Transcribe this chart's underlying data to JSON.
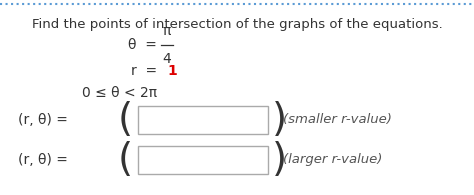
{
  "title": "Find the points of intersection of the graphs of the equations.",
  "title_color": "#333333",
  "title_fontsize": 9.5,
  "background_color": "#ffffff",
  "border_color": "#5b9bd5",
  "text_color": "#333333",
  "eq2_value_color": "#dd0000",
  "hint_color": "#555555",
  "box_border_color": "#aaaaaa",
  "box_color": "#ffffff",
  "label1": "(r, θ) = ",
  "label2": "(r, θ) = ",
  "hint1": "(smaller r-value)",
  "hint2": "(larger r-value)"
}
